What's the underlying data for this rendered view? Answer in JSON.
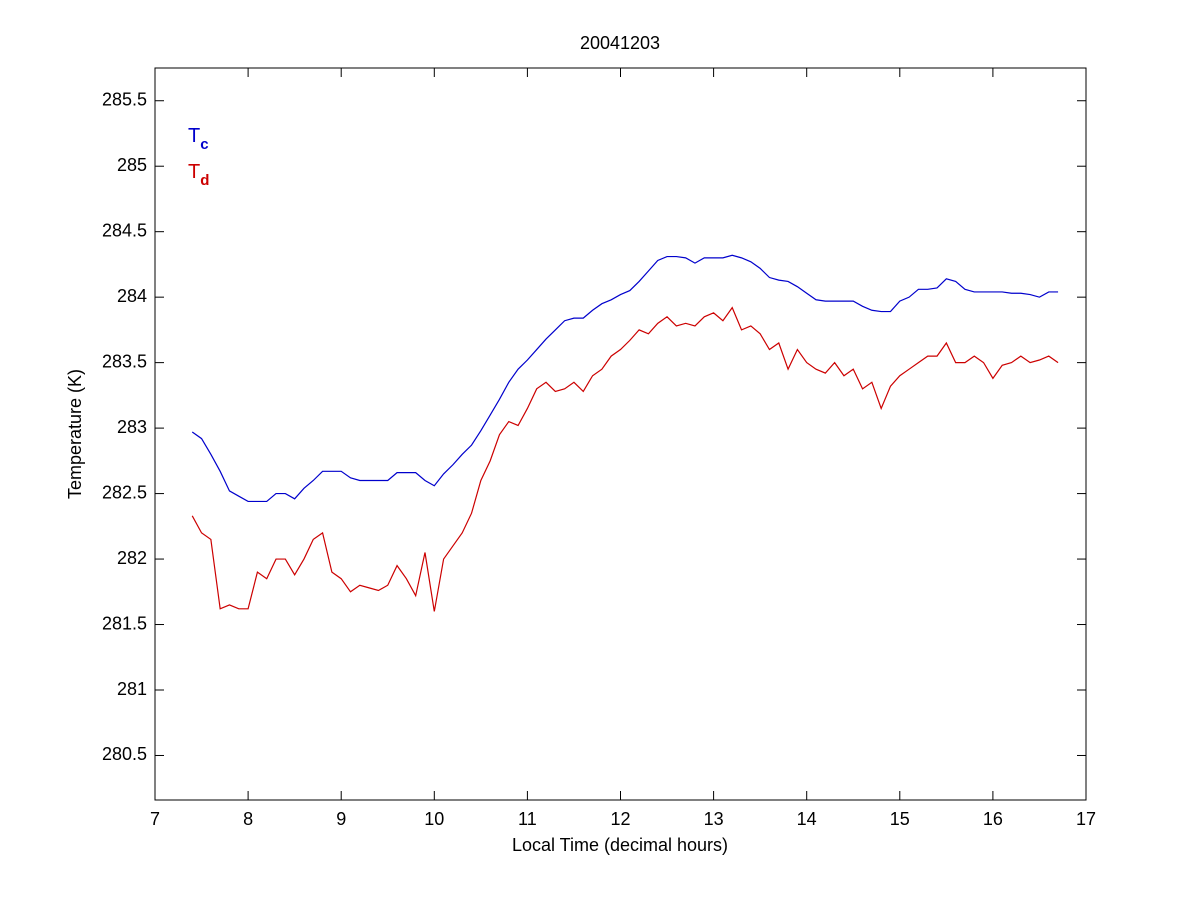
{
  "chart_data": {
    "type": "line",
    "title": "20041203",
    "xlabel": "Local Time (decimal hours)",
    "ylabel": "Temperature (K)",
    "x": [
      7.4,
      7.5,
      7.6,
      7.7,
      7.8,
      7.9,
      8.0,
      8.1,
      8.2,
      8.3,
      8.4,
      8.5,
      8.6,
      8.7,
      8.8,
      8.9,
      9.0,
      9.1,
      9.2,
      9.3,
      9.4,
      9.5,
      9.6,
      9.7,
      9.8,
      9.9,
      10.0,
      10.1,
      10.2,
      10.3,
      10.4,
      10.5,
      10.6,
      10.7,
      10.8,
      10.9,
      11.0,
      11.1,
      11.2,
      11.3,
      11.4,
      11.5,
      11.6,
      11.7,
      11.8,
      11.9,
      12.0,
      12.1,
      12.2,
      12.3,
      12.4,
      12.5,
      12.6,
      12.7,
      12.8,
      12.9,
      13.0,
      13.1,
      13.2,
      13.3,
      13.4,
      13.5,
      13.6,
      13.7,
      13.8,
      13.9,
      14.0,
      14.1,
      14.2,
      14.3,
      14.4,
      14.5,
      14.6,
      14.7,
      14.8,
      14.9,
      15.0,
      15.1,
      15.2,
      15.3,
      15.4,
      15.5,
      15.6,
      15.7,
      15.8,
      15.9,
      16.0,
      16.1,
      16.2,
      16.3,
      16.4,
      16.5,
      16.6,
      16.7
    ],
    "series": [
      {
        "name": "Tc",
        "color": "#0000cc",
        "values": [
          282.97,
          282.92,
          282.8,
          282.67,
          282.52,
          282.48,
          282.44,
          282.44,
          282.44,
          282.5,
          282.5,
          282.46,
          282.54,
          282.6,
          282.67,
          282.67,
          282.67,
          282.62,
          282.6,
          282.6,
          282.6,
          282.6,
          282.66,
          282.66,
          282.66,
          282.6,
          282.56,
          282.65,
          282.72,
          282.8,
          282.87,
          282.98,
          283.1,
          283.22,
          283.35,
          283.45,
          283.52,
          283.6,
          283.68,
          283.75,
          283.82,
          283.84,
          283.84,
          283.9,
          283.95,
          283.98,
          284.02,
          284.05,
          284.12,
          284.2,
          284.28,
          284.31,
          284.31,
          284.3,
          284.26,
          284.3,
          284.3,
          284.3,
          284.32,
          284.3,
          284.27,
          284.22,
          284.15,
          284.13,
          284.12,
          284.08,
          284.03,
          283.98,
          283.97,
          283.97,
          283.97,
          283.97,
          283.93,
          283.9,
          283.89,
          283.89,
          283.97,
          284.0,
          284.06,
          284.06,
          284.07,
          284.14,
          284.12,
          284.06,
          284.04,
          284.04,
          284.04,
          284.04,
          284.03,
          284.03,
          284.02,
          284.0,
          284.04,
          284.04
        ]
      },
      {
        "name": "Td",
        "color": "#cc0000",
        "values": [
          282.33,
          282.2,
          282.15,
          281.62,
          281.65,
          281.62,
          281.62,
          281.9,
          281.85,
          282.0,
          282.0,
          281.88,
          282.0,
          282.15,
          282.2,
          281.9,
          281.85,
          281.75,
          281.8,
          281.78,
          281.76,
          281.8,
          281.95,
          281.85,
          281.72,
          282.05,
          281.6,
          282.0,
          282.1,
          282.2,
          282.35,
          282.6,
          282.75,
          282.95,
          283.05,
          283.02,
          283.15,
          283.3,
          283.35,
          283.28,
          283.3,
          283.35,
          283.28,
          283.4,
          283.45,
          283.55,
          283.6,
          283.67,
          283.75,
          283.72,
          283.8,
          283.85,
          283.78,
          283.8,
          283.78,
          283.85,
          283.88,
          283.82,
          283.92,
          283.75,
          283.78,
          283.72,
          283.6,
          283.65,
          283.45,
          283.6,
          283.5,
          283.45,
          283.42,
          283.5,
          283.4,
          283.45,
          283.3,
          283.35,
          283.15,
          283.32,
          283.4,
          283.45,
          283.5,
          283.55,
          283.55,
          283.65,
          283.5,
          283.5,
          283.55,
          283.5,
          283.38,
          283.48,
          283.5,
          283.55,
          283.5,
          283.52,
          283.55,
          283.5
        ]
      }
    ],
    "xlim": [
      7,
      17
    ],
    "xticks": [
      7,
      8,
      9,
      10,
      11,
      12,
      13,
      14,
      15,
      16,
      17
    ],
    "ylim": [
      280.16,
      285.75
    ],
    "yticks": [
      280.5,
      281,
      281.5,
      282,
      282.5,
      283,
      283.5,
      284,
      284.5,
      285,
      285.5
    ],
    "grid": false,
    "legend": "upper left"
  }
}
